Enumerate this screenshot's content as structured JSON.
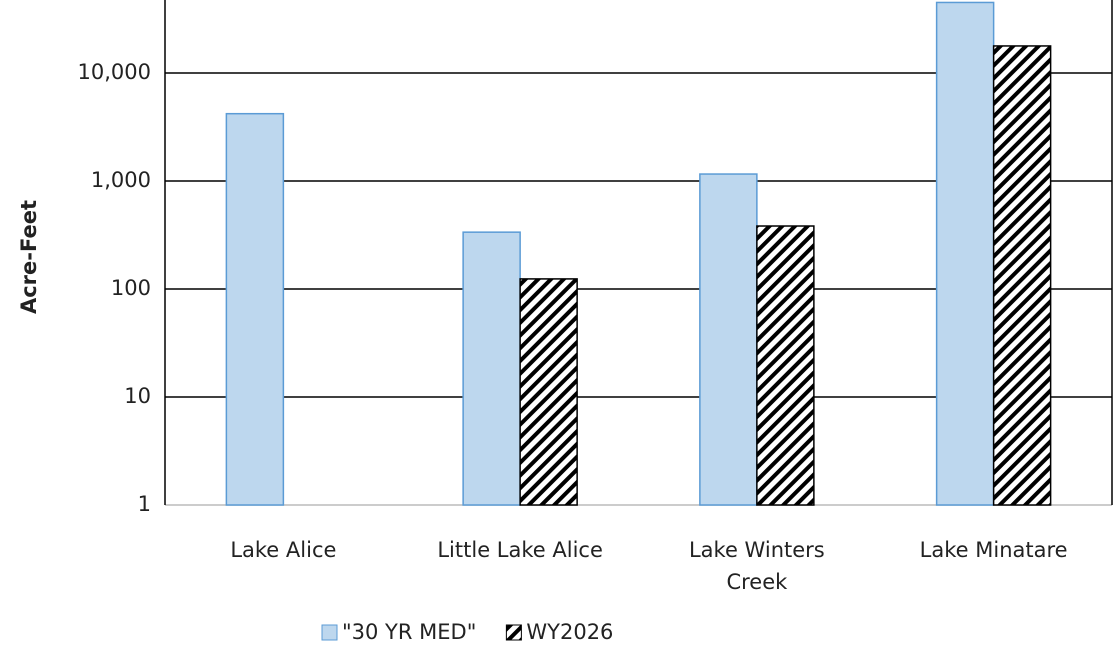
{
  "chart_data": {
    "type": "bar",
    "y_label": "Acre-Feet",
    "log_scale": true,
    "grid": true,
    "categories": [
      "Lake Alice",
      "Little Lake Alice",
      "Lake Winters Creek",
      "Lake Minatare"
    ],
    "series": [
      {
        "name": "\"30 YR MED\"",
        "color": "#bdd7ee",
        "values": [
          4200,
          336,
          1160,
          45000
        ]
      },
      {
        "name": "WY2026",
        "color": "hatch",
        "values": [
          null,
          124,
          383,
          17800
        ]
      }
    ],
    "ylim": [
      1,
      100000
    ],
    "yticks": [
      1,
      10,
      100,
      {
        "value": 1000,
        "label": "1,000"
      },
      {
        "value": 10000,
        "label": "10,000"
      }
    ],
    "legend": "bottom"
  }
}
